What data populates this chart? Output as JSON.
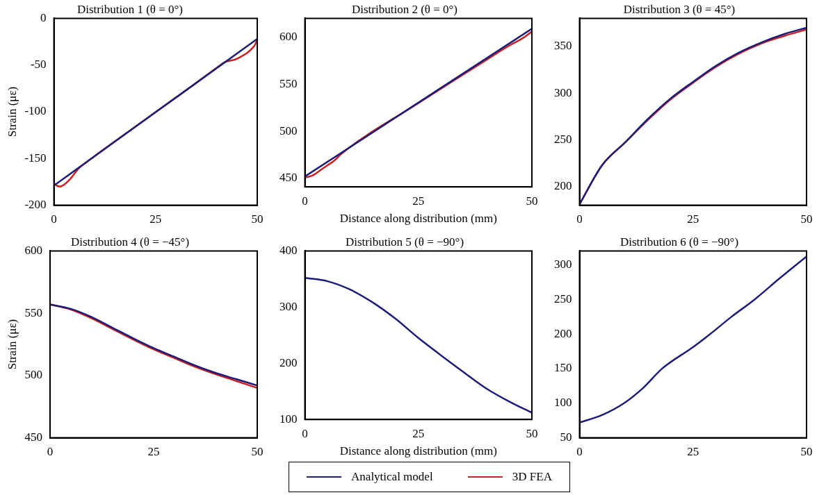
{
  "chart_data": [
    {
      "type": "line",
      "title": "Distribution 1 (θ = 0°)",
      "ylabel": "Strain (με)",
      "legend": "bottom",
      "xlim": [
        0,
        50
      ],
      "xticks": [
        0,
        25,
        50
      ],
      "ylim": [
        -200,
        0
      ],
      "yticks": [
        -200,
        -150,
        -100,
        -50,
        0
      ],
      "grid": false,
      "line_style": "solid",
      "marker": "none",
      "series": [
        {
          "name": "Analytical model",
          "color": "#1c1c78",
          "x": [
            0,
            50
          ],
          "values": [
            -179,
            -22
          ]
        },
        {
          "name": "3D FEA",
          "color": "#cc2020",
          "x": [
            0,
            0.7,
            1.5,
            2.5,
            4,
            6,
            8,
            20,
            35,
            40,
            42,
            44.6,
            46,
            47.5,
            49,
            49.6,
            50
          ],
          "values": [
            -176,
            -179,
            -180,
            -178,
            -172,
            -161,
            -154,
            -116,
            -69,
            -53,
            -47,
            -44,
            -41,
            -37,
            -31,
            -27,
            -22
          ]
        }
      ]
    },
    {
      "type": "line",
      "title": "Distribution 2 (θ = 0°)",
      "xlabel": "Distance along distribution (mm)",
      "xlim": [
        0,
        50
      ],
      "xticks": [
        0,
        25,
        50
      ],
      "ylim": [
        441,
        620
      ],
      "yticks": [
        450,
        500,
        550,
        600
      ],
      "grid": false,
      "line_style": "solid",
      "marker": "none",
      "series": [
        {
          "color": "#1c1c78",
          "x": [
            0,
            50
          ],
          "values": [
            452,
            609
          ]
        },
        {
          "color": "#cc2020",
          "x": [
            0,
            1,
            2,
            3.5,
            5,
            6.5,
            8,
            25,
            40,
            45,
            48,
            50
          ],
          "values": [
            451,
            452,
            454,
            459,
            464,
            469,
            476,
            530,
            576,
            591,
            599,
            606
          ]
        }
      ]
    },
    {
      "type": "line",
      "title": "Distribution 3 (θ = 45°)",
      "xlim": [
        0,
        50
      ],
      "xticks": [
        0,
        25,
        50
      ],
      "ylim": [
        180,
        380
      ],
      "yticks": [
        200,
        250,
        300,
        350
      ],
      "grid": false,
      "line_style": "solid",
      "marker": "none",
      "series": [
        {
          "color": "#1c1c78",
          "x": [
            0,
            5,
            10,
            15,
            20,
            25,
            30,
            35,
            40,
            45,
            50
          ],
          "values": [
            181,
            223,
            247,
            272,
            294,
            312,
            329,
            343,
            354,
            363,
            370
          ]
        },
        {
          "color": "#cc2020",
          "x": [
            0,
            5,
            10,
            15,
            20,
            25,
            30,
            35,
            40,
            45,
            50
          ],
          "values": [
            181,
            223,
            247,
            271,
            293,
            311,
            328,
            342,
            353,
            361,
            368
          ]
        }
      ]
    },
    {
      "type": "line",
      "title": "Distribution 4 (θ = −45°)",
      "ylabel": "Strain (με)",
      "xlim": [
        0,
        50
      ],
      "xticks": [
        0,
        25,
        50
      ],
      "ylim": [
        450,
        600
      ],
      "yticks": [
        450,
        500,
        550,
        600
      ],
      "grid": false,
      "line_style": "solid",
      "marker": "none",
      "series": [
        {
          "color": "#1c1c78",
          "x": [
            0,
            5,
            10,
            15,
            20,
            25,
            30,
            35,
            40,
            45,
            50
          ],
          "values": [
            557,
            553.5,
            547,
            538.5,
            530,
            522,
            515,
            508,
            502,
            497,
            492
          ]
        },
        {
          "color": "#cc2020",
          "x": [
            0,
            5,
            10,
            15,
            20,
            25,
            30,
            35,
            40,
            45,
            50
          ],
          "values": [
            557,
            553,
            546,
            537.5,
            529,
            521,
            514,
            507,
            501,
            495.5,
            490
          ]
        }
      ]
    },
    {
      "type": "line",
      "title": "Distribution 5 (θ = −90°)",
      "xlabel": "Distance along distribution (mm)",
      "xlim": [
        0,
        50
      ],
      "xticks": [
        0,
        25,
        50
      ],
      "ylim": [
        100,
        400
      ],
      "yticks": [
        100,
        200,
        300,
        400
      ],
      "grid": false,
      "line_style": "solid",
      "marker": "none",
      "series": [
        {
          "color": "#1c1c78",
          "x": [
            0,
            5,
            10,
            15,
            20,
            25,
            30,
            35,
            40,
            45,
            50
          ],
          "values": [
            352,
            346,
            331,
            308,
            279,
            245,
            214,
            184,
            155,
            132,
            112
          ]
        }
      ]
    },
    {
      "type": "line",
      "title": "Distribution 6 (θ = −90°)",
      "xlim": [
        0,
        50
      ],
      "xticks": [
        0,
        25,
        50
      ],
      "ylim": [
        50,
        320
      ],
      "yticks": [
        50,
        100,
        150,
        200,
        250,
        300
      ],
      "grid": false,
      "line_style": "solid",
      "marker": "none",
      "series": [
        {
          "color": "#1c1c78",
          "x": [
            0,
            5,
            9.8,
            14,
            18.2,
            25,
            28.8,
            33.5,
            38.6,
            44,
            50
          ],
          "values": [
            72,
            83,
            100,
            122,
            150,
            181,
            200,
            225,
            250,
            280,
            312
          ]
        }
      ]
    }
  ]
}
